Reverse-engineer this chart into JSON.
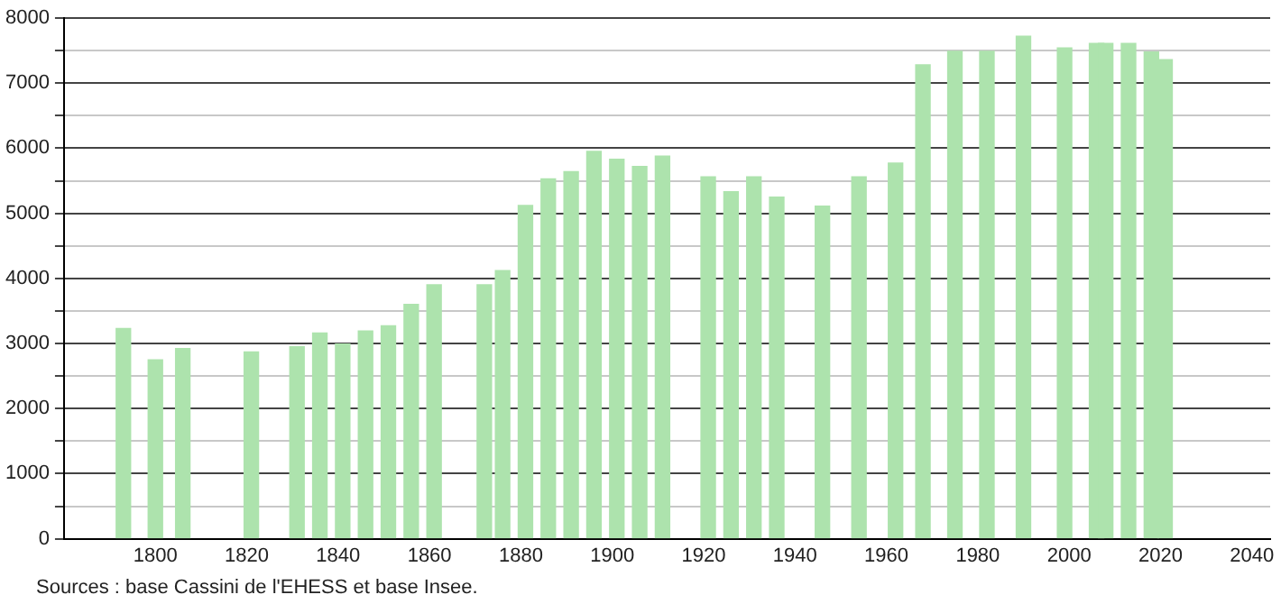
{
  "chart_data": {
    "type": "bar",
    "x": [
      1793,
      1800,
      1806,
      1821,
      1831,
      1836,
      1841,
      1846,
      1851,
      1856,
      1861,
      1872,
      1876,
      1881,
      1886,
      1891,
      1896,
      1901,
      1906,
      1911,
      1921,
      1926,
      1931,
      1936,
      1946,
      1954,
      1962,
      1968,
      1975,
      1982,
      1990,
      1999,
      2006,
      2008,
      2013,
      2018,
      2021
    ],
    "values": [
      3230,
      2750,
      2920,
      2870,
      2950,
      3160,
      2990,
      3190,
      3270,
      3600,
      3900,
      3900,
      4120,
      5120,
      5530,
      5640,
      5950,
      5830,
      5720,
      5880,
      5560,
      5330,
      5560,
      5250,
      5110,
      5560,
      5770,
      7280,
      7490,
      7490,
      7720,
      7540,
      7610,
      7610,
      7610,
      7480,
      7360
    ],
    "color": "#ade3ad",
    "xlim": [
      1780,
      2044
    ],
    "xticks": [
      1800,
      1820,
      1840,
      1860,
      1880,
      1900,
      1920,
      1940,
      1960,
      1980,
      2000,
      2020,
      2040
    ],
    "ylim": [
      0,
      8000
    ],
    "yticks": [
      0,
      {
        "value": 500,
        "label": null
      },
      1000,
      {
        "value": 1500,
        "label": null
      },
      2000,
      {
        "value": 2500,
        "label": null
      },
      3000,
      {
        "value": 3500,
        "label": null
      },
      4000,
      {
        "value": 4500,
        "label": null
      },
      5000,
      {
        "value": 5500,
        "label": null
      },
      6000,
      {
        "value": 6500,
        "label": null
      },
      7000,
      {
        "value": 7500,
        "label": null
      },
      8000
    ],
    "grid": "y",
    "annotations": [
      "Sources : base Cassini de l'EHESS et base Insee."
    ]
  }
}
